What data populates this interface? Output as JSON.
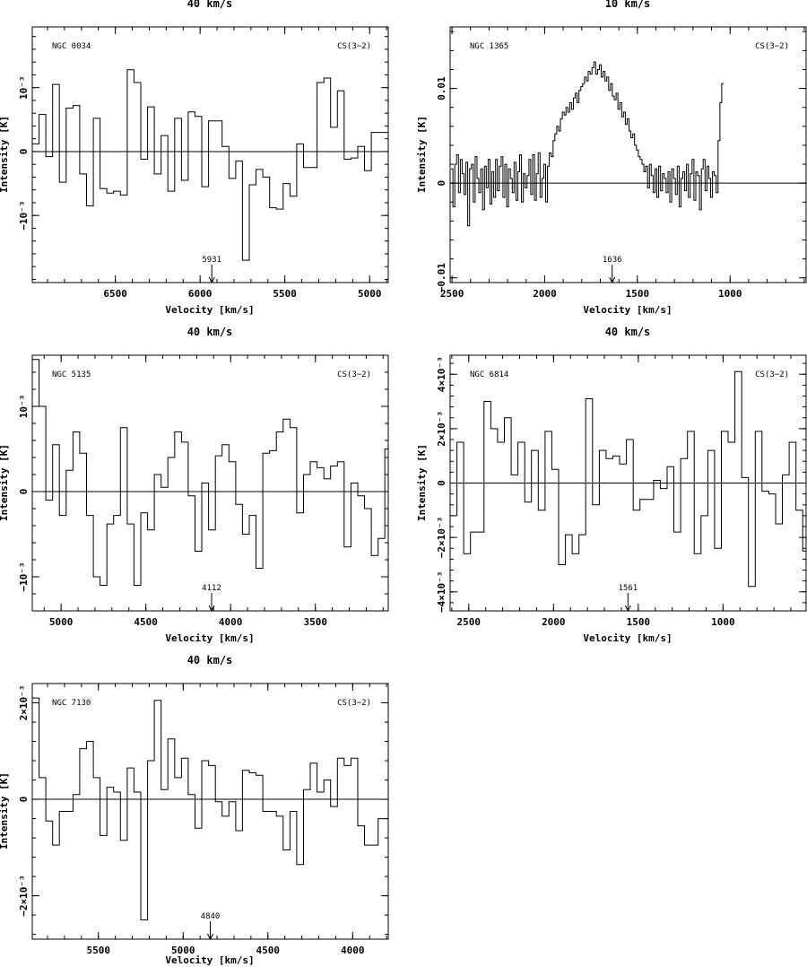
{
  "chart_data": [
    {
      "type": "line",
      "resolution": "40 km/s",
      "galaxy": "NGC 0034",
      "transition": "CS(3−2)",
      "xlabel": "Velocity  [km/s]",
      "ylabel": "Intensity [K]",
      "xlim": [
        6990,
        4890
      ],
      "ylim": [
        -0.00205,
        0.00195
      ],
      "xticks": [
        {
          "v": 6500,
          "label": "6500"
        },
        {
          "v": 6000,
          "label": "6000"
        },
        {
          "v": 5500,
          "label": "5500"
        },
        {
          "v": 5000,
          "label": "5000"
        }
      ],
      "yticks": [
        {
          "v": 0.001,
          "label": "10⁻³"
        },
        {
          "v": 0,
          "label": "0"
        },
        {
          "v": -0.001,
          "label": "−10⁻³"
        }
      ],
      "marker": {
        "v": 5931,
        "label": "5931"
      },
      "x": [
        6970,
        6930,
        6890,
        6850,
        6810,
        6770,
        6730,
        6690,
        6650,
        6610,
        6570,
        6530,
        6490,
        6450,
        6410,
        6370,
        6330,
        6290,
        6250,
        6210,
        6170,
        6130,
        6090,
        6050,
        6010,
        5970,
        5930,
        5890,
        5850,
        5810,
        5770,
        5730,
        5690,
        5650,
        5610,
        5570,
        5530,
        5490,
        5450,
        5410,
        5370,
        5330,
        5290,
        5250,
        5210,
        5170,
        5130,
        5090,
        5050,
        5010,
        4970,
        4930,
        4890
      ],
      "values": [
        0.00012,
        0.00058,
        -8e-05,
        0.00105,
        -0.00048,
        0.00068,
        0.00072,
        -0.00035,
        -0.00085,
        0.00052,
        -0.00058,
        -0.00065,
        -0.00062,
        -0.00068,
        0.00128,
        0.00108,
        -0.00012,
        0.0007,
        -0.00035,
        0.00025,
        -0.00062,
        0.00052,
        -0.00045,
        0.00062,
        0.00055,
        -0.00055,
        0.00048,
        0.00048,
        8e-05,
        -0.00042,
        -0.00015,
        -0.0017,
        -0.00052,
        -0.00028,
        -0.0004,
        -0.00088,
        -0.0009,
        -0.0005,
        -0.0007,
        0.00012,
        -0.00025,
        -0.00025,
        0.00108,
        0.00115,
        0.00038,
        0.00095,
        -0.00012,
        -0.0001,
        8e-05,
        -0.0003,
        0.0003,
        0.0003,
        0.0003
      ]
    },
    {
      "type": "line",
      "resolution": "10 km/s",
      "galaxy": "NGC 1365",
      "transition": "CS(3−2)",
      "xlabel": "Velocity  [km/s]",
      "ylabel": "Intensity [K]",
      "xlim": [
        2510,
        590
      ],
      "ylim": [
        -0.0105,
        0.0165
      ],
      "xticks": [
        {
          "v": 2500,
          "label": "2500"
        },
        {
          "v": 2000,
          "label": "2000"
        },
        {
          "v": 1500,
          "label": "1500"
        },
        {
          "v": 1000,
          "label": "1000"
        }
      ],
      "yticks": [
        {
          "v": 0.01,
          "label": "0.01"
        },
        {
          "v": 0,
          "label": "0"
        },
        {
          "v": -0.01,
          "label": "−0.01"
        }
      ],
      "marker": {
        "v": 1636,
        "label": "1636"
      },
      "x_start": 2500,
      "x_step": -10,
      "values": [
        0.0015,
        -0.0025,
        0.002,
        0.003,
        -0.001,
        0.0025,
        0.001,
        -0.0012,
        0.0022,
        -0.0045,
        0.0015,
        0.002,
        -0.002,
        0.0028,
        0.0005,
        -0.001,
        0.0015,
        -0.0028,
        0.0018,
        -0.0005,
        0.0025,
        -0.0022,
        0.0012,
        -0.0015,
        0.0025,
        -0.0008,
        0.0018,
        0.0028,
        -0.0015,
        0.002,
        -0.0025,
        0.0015,
        0.0005,
        -0.001,
        0.0022,
        -0.0018,
        0.0012,
        0.003,
        -0.002,
        0.001,
        -0.0005,
        0.0008,
        0.0025,
        -0.0012,
        0.003,
        -0.0018,
        0.001,
        0.0032,
        -0.0015,
        0.0005,
        0.002,
        -0.002,
        0.0018,
        0.0032,
        0.0028,
        0.0045,
        0.0052,
        0.006,
        0.0055,
        0.0068,
        0.0075,
        0.0072,
        0.008,
        0.0075,
        0.0085,
        0.0078,
        0.009,
        0.0095,
        0.0085,
        0.0098,
        0.0102,
        0.0105,
        0.0112,
        0.0108,
        0.0118,
        0.0115,
        0.0122,
        0.0128,
        0.0115,
        0.012,
        0.0125,
        0.0112,
        0.0118,
        0.0108,
        0.0112,
        0.0098,
        0.0105,
        0.0092,
        0.0088,
        0.0095,
        0.0078,
        0.0085,
        0.007,
        0.0075,
        0.0062,
        0.0068,
        0.0055,
        0.0048,
        0.0052,
        0.004,
        0.0035,
        0.0028,
        0.0025,
        0.002,
        0.0012,
        0.0018,
        -0.0005,
        0.002,
        0.0008,
        -0.001,
        0.0015,
        -0.0015,
        0.0018,
        -0.0008,
        0.001,
        0.0005,
        -0.001,
        0.0012,
        -0.002,
        0.0015,
        0.0005,
        -0.0012,
        0.0018,
        -0.0025,
        0.0005,
        0.0012,
        -0.0008,
        0.002,
        -0.0015,
        0.001,
        0.0025,
        -0.0018,
        0.0012,
        0.0008,
        -0.0028,
        0.0015,
        0.0025,
        -0.0008,
        0.0018,
        0.0005,
        -0.0015,
        0.0012,
        0.0008,
        -0.001,
        0.0045,
        0.0085,
        0.0105
      ]
    },
    {
      "type": "line",
      "resolution": "40 km/s",
      "galaxy": "NGC 5135",
      "transition": "CS(3−2)",
      "xlabel": "Velocity  [km/s]",
      "ylabel": "Intensity [K]",
      "xlim": [
        5170,
        3070
      ],
      "ylim": [
        -0.0014,
        0.0016
      ],
      "xticks": [
        {
          "v": 5000,
          "label": "5000"
        },
        {
          "v": 4500,
          "label": "4500"
        },
        {
          "v": 4000,
          "label": "4000"
        },
        {
          "v": 3500,
          "label": "3500"
        }
      ],
      "yticks": [
        {
          "v": 0.001,
          "label": "10⁻³"
        },
        {
          "v": 0,
          "label": "0"
        },
        {
          "v": -0.001,
          "label": "−10⁻³"
        }
      ],
      "marker": {
        "v": 4112,
        "label": "4112"
      },
      "x": [
        5150,
        5110,
        5070,
        5030,
        4990,
        4950,
        4910,
        4870,
        4830,
        4790,
        4750,
        4710,
        4670,
        4630,
        4590,
        4550,
        4510,
        4470,
        4430,
        4390,
        4350,
        4310,
        4270,
        4230,
        4190,
        4150,
        4110,
        4070,
        4030,
        3990,
        3950,
        3910,
        3870,
        3830,
        3790,
        3750,
        3710,
        3670,
        3630,
        3590,
        3550,
        3510,
        3470,
        3430,
        3390,
        3350,
        3310,
        3270,
        3230,
        3190,
        3150,
        3110,
        3070
      ],
      "values": [
        0.00155,
        0.001,
        -0.0001,
        0.00055,
        -0.00028,
        0.00025,
        0.0007,
        0.00045,
        -0.00028,
        -0.001,
        -0.0011,
        -0.00038,
        -0.00028,
        0.00075,
        -0.00038,
        -0.0011,
        -0.00025,
        -0.00045,
        0.0002,
        5e-05,
        0.0004,
        0.0007,
        0.00058,
        -5e-05,
        -0.0007,
        0.0001,
        -0.00045,
        0.00042,
        0.00055,
        0.00035,
        -0.00015,
        -0.0005,
        -0.00028,
        -0.0009,
        0.00045,
        0.00048,
        0.0007,
        0.00085,
        0.00075,
        -0.00025,
        0.0002,
        0.00035,
        0.00028,
        0.00015,
        0.0003,
        0.00035,
        -0.00065,
        0.0001,
        -5e-05,
        -0.0002,
        -0.00075,
        -0.00055,
        0.0005
      ]
    },
    {
      "type": "line",
      "resolution": "40 km/s",
      "galaxy": "NGC 6814",
      "transition": "CS(3−2)",
      "xlabel": "Velocity  [km/s]",
      "ylabel": "Intensity [K]",
      "xlim": [
        2610,
        510
      ],
      "ylim": [
        -0.0047,
        0.0047
      ],
      "xticks": [
        {
          "v": 2500,
          "label": "2500"
        },
        {
          "v": 2000,
          "label": "2000"
        },
        {
          "v": 1500,
          "label": "1500"
        },
        {
          "v": 1000,
          "label": "1000"
        }
      ],
      "yticks": [
        {
          "v": 0.004,
          "label": "4×10⁻³"
        },
        {
          "v": 0.002,
          "label": "2×10⁻³"
        },
        {
          "v": 0,
          "label": "0"
        },
        {
          "v": -0.002,
          "label": "−2×10⁻³"
        },
        {
          "v": -0.004,
          "label": "−4×10⁻³"
        }
      ],
      "marker": {
        "v": 1561,
        "label": "1561"
      },
      "x": [
        2590,
        2550,
        2510,
        2470,
        2430,
        2390,
        2350,
        2310,
        2270,
        2230,
        2190,
        2150,
        2110,
        2070,
        2030,
        1990,
        1950,
        1910,
        1870,
        1830,
        1790,
        1750,
        1710,
        1670,
        1630,
        1590,
        1550,
        1510,
        1470,
        1430,
        1390,
        1350,
        1310,
        1270,
        1230,
        1190,
        1150,
        1110,
        1070,
        1030,
        990,
        950,
        910,
        870,
        830,
        790,
        750,
        710,
        670,
        630,
        590,
        550,
        510
      ],
      "values": [
        -0.0012,
        0.0015,
        -0.0026,
        -0.0018,
        -0.0018,
        0.003,
        0.002,
        0.0015,
        0.0024,
        0.0003,
        0.0015,
        -0.0007,
        0.0012,
        -0.001,
        0.0019,
        0.0005,
        -0.003,
        -0.0019,
        -0.0026,
        -0.0019,
        0.0031,
        -0.0008,
        0.0012,
        0.0009,
        0.001,
        0.0007,
        0.0016,
        -0.001,
        -0.0006,
        -0.0006,
        0.0001,
        -0.0002,
        0.0006,
        -0.0018,
        0.0009,
        0.0019,
        -0.0026,
        -0.0012,
        0.0012,
        -0.0024,
        0.0019,
        0.0015,
        0.0041,
        0.0002,
        -0.0038,
        0.0019,
        -0.0003,
        -0.0004,
        -0.0015,
        0.0003,
        0.0015,
        -0.001,
        -0.0025
      ]
    },
    {
      "type": "line",
      "resolution": "40 km/s",
      "galaxy": "NGC 7130",
      "transition": "CS(3−2)",
      "xlabel": "Velocity  [km/s]",
      "ylabel": "Intensity [K]",
      "xlim": [
        5890,
        3790
      ],
      "ylim": [
        -0.0029,
        0.0024
      ],
      "xticks": [
        {
          "v": 5500,
          "label": "5500"
        },
        {
          "v": 5000,
          "label": "5000"
        },
        {
          "v": 4500,
          "label": "4500"
        },
        {
          "v": 4000,
          "label": "4000"
        }
      ],
      "yticks": [
        {
          "v": 0.002,
          "label": "2×10⁻³"
        },
        {
          "v": 0,
          "label": "0"
        },
        {
          "v": -0.002,
          "label": "−2×10⁻³"
        }
      ],
      "marker": {
        "v": 4840,
        "label": "4840"
      },
      "x": [
        5870,
        5830,
        5790,
        5750,
        5710,
        5670,
        5630,
        5590,
        5550,
        5510,
        5470,
        5430,
        5390,
        5350,
        5310,
        5270,
        5230,
        5190,
        5150,
        5110,
        5070,
        5030,
        4990,
        4950,
        4910,
        4870,
        4830,
        4790,
        4750,
        4710,
        4670,
        4630,
        4590,
        4550,
        4510,
        4470,
        4430,
        4390,
        4350,
        4310,
        4270,
        4230,
        4190,
        4150,
        4110,
        4070,
        4030,
        3990,
        3950,
        3910,
        3870,
        3830,
        3790
      ],
      "values": [
        0.0021,
        0.00045,
        -0.00045,
        -0.00095,
        -0.00025,
        -0.00025,
        0.0001,
        0.00105,
        0.0012,
        0.00045,
        -0.00075,
        0.00025,
        0.00015,
        -0.00085,
        0.00065,
        0.00015,
        -0.0025,
        0.0008,
        0.00205,
        0.0002,
        0.00125,
        0.00045,
        0.00085,
        0.0001,
        -0.0006,
        0.0008,
        0.0007,
        -5e-05,
        -0.00035,
        -5e-05,
        -0.00065,
        0.0006,
        0.00055,
        0.0005,
        -0.00025,
        -0.00025,
        -0.00035,
        -0.00105,
        -0.00025,
        -0.00135,
        0.0002,
        0.00075,
        0.00015,
        0.0004,
        -0.00015,
        0.00085,
        0.0007,
        0.00085,
        -0.00055,
        -0.00095,
        -0.00095,
        -0.0004,
        -0.0004
      ]
    }
  ]
}
